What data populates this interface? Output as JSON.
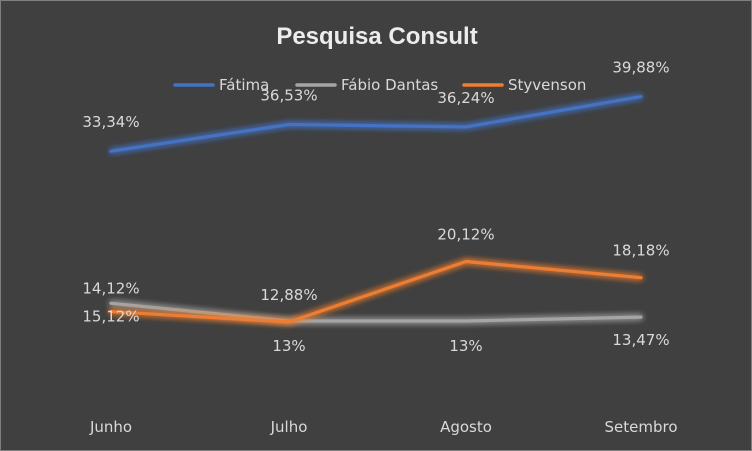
{
  "chart_data": {
    "type": "line",
    "title": "Pesquisa Consult",
    "categories": [
      "Junho",
      "Julho",
      "Agosto",
      "Setembro"
    ],
    "series": [
      {
        "name": "Fátima",
        "color": "#4472c4",
        "values": [
          33.34,
          36.53,
          36.24,
          39.88
        ],
        "labels": [
          "33,34%",
          "36,53%",
          "36,24%",
          "39,88%"
        ]
      },
      {
        "name": "Fábio Dantas",
        "color": "#a5a5a5",
        "values": [
          15.12,
          13,
          13,
          13.47
        ],
        "labels": [
          "15,12%",
          "13%",
          "13%",
          "13,47%"
        ]
      },
      {
        "name": "Styvenson",
        "color": "#ed7d31",
        "values": [
          14.12,
          12.88,
          20.12,
          18.18
        ],
        "labels": [
          "14,12%",
          "12,88%",
          "20,12%",
          "18,18%"
        ]
      }
    ],
    "legend_position": "top",
    "grid": false,
    "y_axis_visible": false
  }
}
